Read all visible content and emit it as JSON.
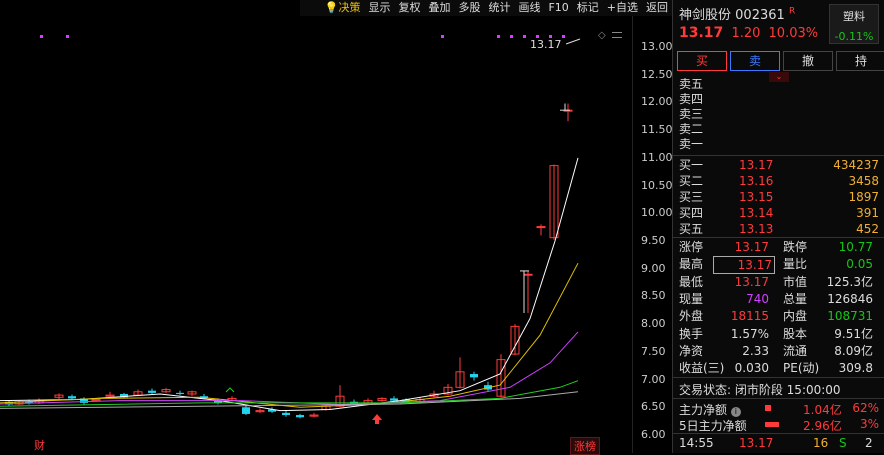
{
  "toolbar": {
    "items": [
      "决策",
      "显示",
      "复权",
      "叠加",
      "多股",
      "统计",
      "画线",
      "F10",
      "标记",
      "+自选",
      "返回"
    ]
  },
  "chart": {
    "price_ticks": [
      "13.00",
      "12.50",
      "12.00",
      "11.50",
      "11.00",
      "10.50",
      "10.00",
      "9.50",
      "9.00",
      "8.50",
      "8.00",
      "7.50",
      "7.00",
      "6.50",
      "6.00"
    ],
    "last_price_label": "13.17",
    "bottom_left_tag": "财",
    "bottom_right_tag": "涨榜",
    "colors": {
      "up": "#ff3a3a",
      "down": "#22d3ee",
      "ma1": "#ffffff",
      "ma2": "#e0c000",
      "ma3": "#d040ff",
      "ma4": "#20d020"
    }
  },
  "stock": {
    "name": "神剑股份",
    "code": "002361",
    "flag": "R",
    "price": "13.17",
    "change": "1.20",
    "change_pct": "10.03%",
    "sector_name": "塑料",
    "sector_change": "-0.11%"
  },
  "buttons": {
    "buy": "买",
    "sell": "卖",
    "cancel": "撤",
    "hold": "持"
  },
  "asks": [
    {
      "label": "卖五"
    },
    {
      "label": "卖四"
    },
    {
      "label": "卖三"
    },
    {
      "label": "卖二"
    },
    {
      "label": "卖一"
    }
  ],
  "bids": [
    {
      "label": "买一",
      "price": "13.17",
      "vol": "434237"
    },
    {
      "label": "买二",
      "price": "13.16",
      "vol": "3458"
    },
    {
      "label": "买三",
      "price": "13.15",
      "vol": "1897"
    },
    {
      "label": "买四",
      "price": "13.14",
      "vol": "391"
    },
    {
      "label": "买五",
      "price": "13.13",
      "vol": "452"
    }
  ],
  "stats": {
    "zhangting_k": "涨停",
    "zhangting_v": "13.17",
    "dieting_k": "跌停",
    "dieting_v": "10.77",
    "zuigao_k": "最高",
    "zuigao_v": "13.17",
    "liangbi_k": "量比",
    "liangbi_v": "0.05",
    "zuidi_k": "最低",
    "zuidi_v": "13.17",
    "shizhi_k": "市值",
    "shizhi_v": "125.3亿",
    "xianliang_k": "现量",
    "xianliang_v": "740",
    "zongliang_k": "总量",
    "zongliang_v": "126846",
    "waipan_k": "外盘",
    "waipan_v": "18115",
    "neipan_k": "内盘",
    "neipan_v": "108731",
    "huanshou_k": "换手",
    "huanshou_v": "1.57%",
    "guben_k": "股本",
    "guben_v": "9.51亿",
    "jingzi_k": "净资",
    "jingzi_v": "2.33",
    "liutong_k": "流通",
    "liutong_v": "8.09亿",
    "shouyi_k": "收益(三)",
    "shouyi_v": "0.030",
    "pe_k": "PE(动)",
    "pe_v": "309.8"
  },
  "trade_status": "交易状态: 闭市阶段 15:00:00",
  "flow": {
    "main_label": "主力净额",
    "main_value": "1.04亿",
    "main_pct": "62%",
    "five_label": "5日主力净额",
    "five_value": "2.96亿",
    "five_pct": "3%"
  },
  "last_tick": {
    "time": "14:55",
    "price": "13.17",
    "vol": "16",
    "side": "S",
    "count": "2"
  }
}
